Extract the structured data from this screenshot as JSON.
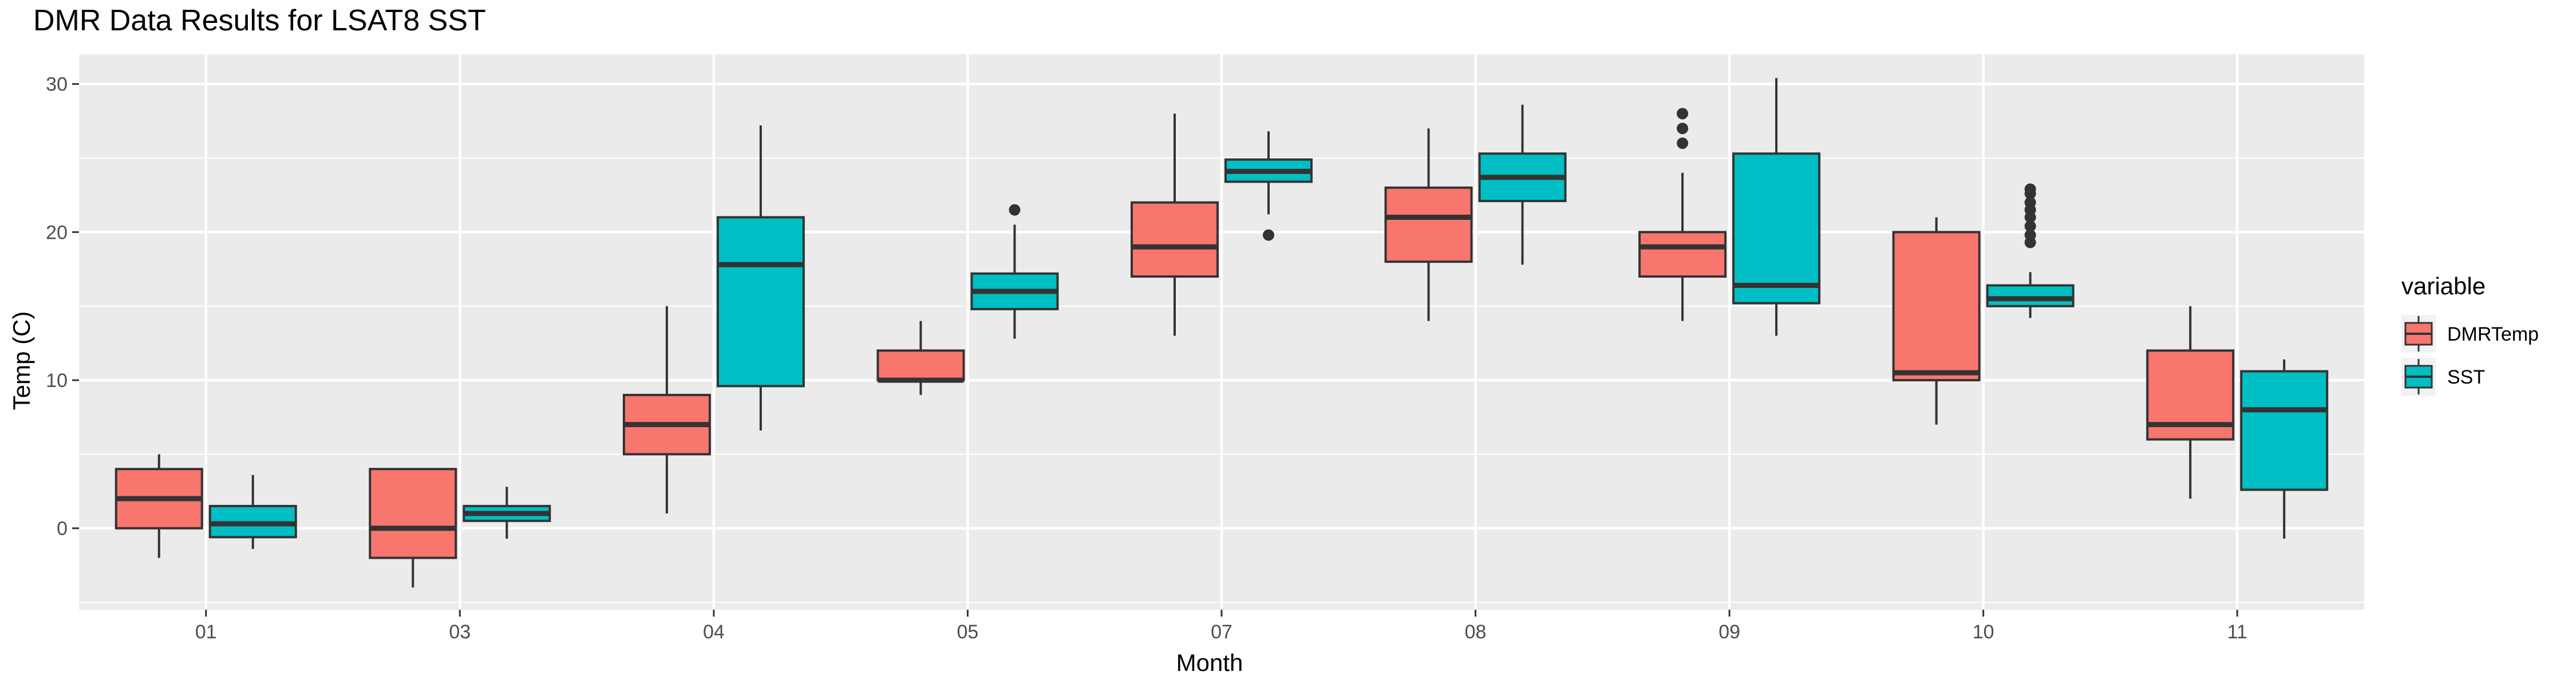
{
  "chart_data": {
    "type": "boxplot",
    "title": "DMR Data Results for LSAT8 SST",
    "xlabel": "Month",
    "ylabel": "Temp (C)",
    "categories": [
      "01",
      "03",
      "04",
      "05",
      "07",
      "08",
      "09",
      "10",
      "11"
    ],
    "ylim": [
      -5.5,
      32
    ],
    "yticks": [
      0,
      10,
      20,
      30
    ],
    "grid": true,
    "legend": {
      "title": "variable",
      "position": "right"
    },
    "colors": {
      "panel": "#ebebeb",
      "grid": "#ffffff",
      "DMRTemp": "#f8766d",
      "SST": "#00bfc4"
    },
    "series": [
      {
        "name": "DMRTemp",
        "color": "#f8766d",
        "boxes": [
          {
            "lower": -2,
            "q1": 0,
            "median": 2,
            "q3": 4,
            "upper": 5,
            "outliers": []
          },
          {
            "lower": -4,
            "q1": -2,
            "median": 0,
            "q3": 4,
            "upper": 4,
            "outliers": []
          },
          {
            "lower": 1,
            "q1": 5,
            "median": 7,
            "q3": 9,
            "upper": 15,
            "outliers": []
          },
          {
            "lower": 9,
            "q1": 10,
            "median": 10,
            "q3": 12,
            "upper": 14,
            "outliers": []
          },
          {
            "lower": 13,
            "q1": 17,
            "median": 19,
            "q3": 22,
            "upper": 28,
            "outliers": []
          },
          {
            "lower": 14,
            "q1": 18,
            "median": 21,
            "q3": 23,
            "upper": 27,
            "outliers": []
          },
          {
            "lower": 14,
            "q1": 17,
            "median": 19,
            "q3": 20,
            "upper": 24,
            "outliers": [
              26,
              27,
              28
            ]
          },
          {
            "lower": 7,
            "q1": 10,
            "median": 10.5,
            "q3": 20,
            "upper": 21,
            "outliers": []
          },
          {
            "lower": 2,
            "q1": 6,
            "median": 7,
            "q3": 12,
            "upper": 15,
            "outliers": []
          }
        ]
      },
      {
        "name": "SST",
        "color": "#00bfc4",
        "boxes": [
          {
            "lower": -1.4,
            "q1": -0.6,
            "median": 0.3,
            "q3": 1.5,
            "upper": 3.6,
            "outliers": []
          },
          {
            "lower": -0.7,
            "q1": 0.5,
            "median": 1.0,
            "q3": 1.5,
            "upper": 2.8,
            "outliers": []
          },
          {
            "lower": 6.6,
            "q1": 9.6,
            "median": 17.8,
            "q3": 21,
            "upper": 27.2,
            "outliers": []
          },
          {
            "lower": 12.8,
            "q1": 14.8,
            "median": 16,
            "q3": 17.2,
            "upper": 20.5,
            "outliers": [
              21.5
            ]
          },
          {
            "lower": 21.2,
            "q1": 23.4,
            "median": 24.1,
            "q3": 24.9,
            "upper": 26.8,
            "outliers": [
              19.8
            ]
          },
          {
            "lower": 17.8,
            "q1": 22.1,
            "median": 23.7,
            "q3": 25.3,
            "upper": 28.6,
            "outliers": []
          },
          {
            "lower": 13,
            "q1": 15.2,
            "median": 16.4,
            "q3": 25.3,
            "upper": 30.4,
            "outliers": []
          },
          {
            "lower": 14.2,
            "q1": 15.0,
            "median": 15.5,
            "q3": 16.4,
            "upper": 17.3,
            "outliers": [
              19.3,
              19.8,
              20.4,
              21.0,
              21.5,
              22.0,
              22.6,
              22.9
            ]
          },
          {
            "lower": -0.7,
            "q1": 2.6,
            "median": 8.0,
            "q3": 10.6,
            "upper": 11.4,
            "outliers": []
          }
        ]
      }
    ]
  }
}
